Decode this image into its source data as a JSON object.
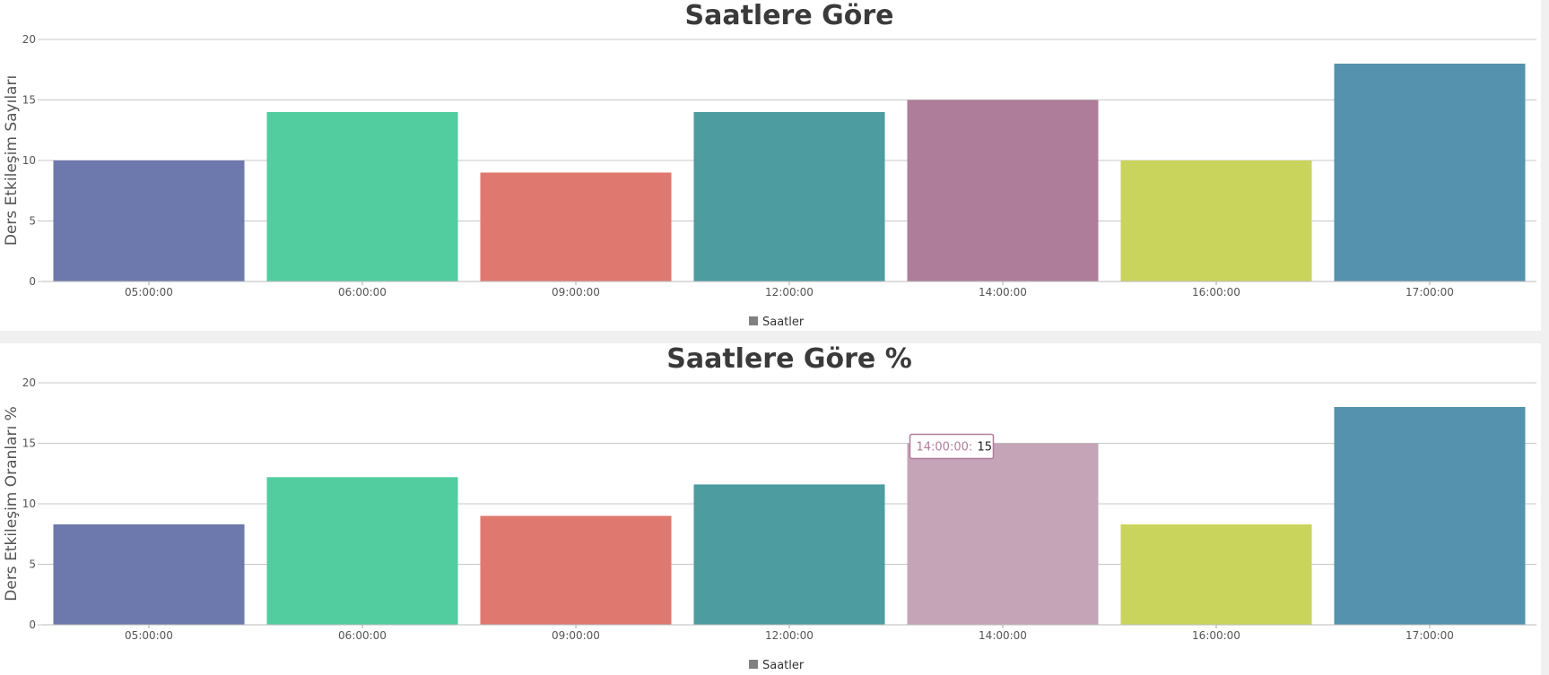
{
  "chart_data": [
    {
      "type": "bar",
      "title": "Saatlere Göre",
      "ylabel": "Ders Etkileşim Sayıları",
      "xlabel": "",
      "ylim": [
        0,
        20
      ],
      "yticks": [
        "0",
        "5",
        "10",
        "15",
        "20"
      ],
      "grid": true,
      "legend_position": "bottom",
      "categories": [
        "05:00:00",
        "06:00:00",
        "09:00:00",
        "12:00:00",
        "14:00:00",
        "16:00:00",
        "17:00:00"
      ],
      "series": [
        {
          "name": "Saatler",
          "values": [
            10,
            14,
            9,
            14,
            15,
            10,
            18
          ]
        }
      ],
      "colors": [
        "#6d78ad",
        "#51cda0",
        "#df7970",
        "#4c9ca0",
        "#ae7d99",
        "#c9d45c",
        "#5592ad"
      ],
      "legend_color": "#808080"
    },
    {
      "type": "bar",
      "title": "Saatlere Göre %",
      "ylabel": "Ders Etkileşim Oranları %",
      "xlabel": "",
      "ylim": [
        0,
        20
      ],
      "yticks": [
        "0",
        "5",
        "10",
        "15",
        "20"
      ],
      "grid": true,
      "legend_position": "bottom",
      "categories": [
        "05:00:00",
        "06:00:00",
        "09:00:00",
        "12:00:00",
        "14:00:00",
        "16:00:00",
        "17:00:00"
      ],
      "series": [
        {
          "name": "Saatler",
          "values": [
            8.3,
            12.2,
            9,
            11.6,
            15,
            8.3,
            18
          ]
        }
      ],
      "colors": [
        "#6d78ad",
        "#51cda0",
        "#df7970",
        "#4c9ca0",
        "#c5a4b8",
        "#c9d45c",
        "#5592ad"
      ],
      "legend_color": "#808080",
      "tooltip": {
        "category": "14:00:00",
        "label": "14:00:00:",
        "value": "15",
        "color": "#b07c9a"
      }
    }
  ]
}
